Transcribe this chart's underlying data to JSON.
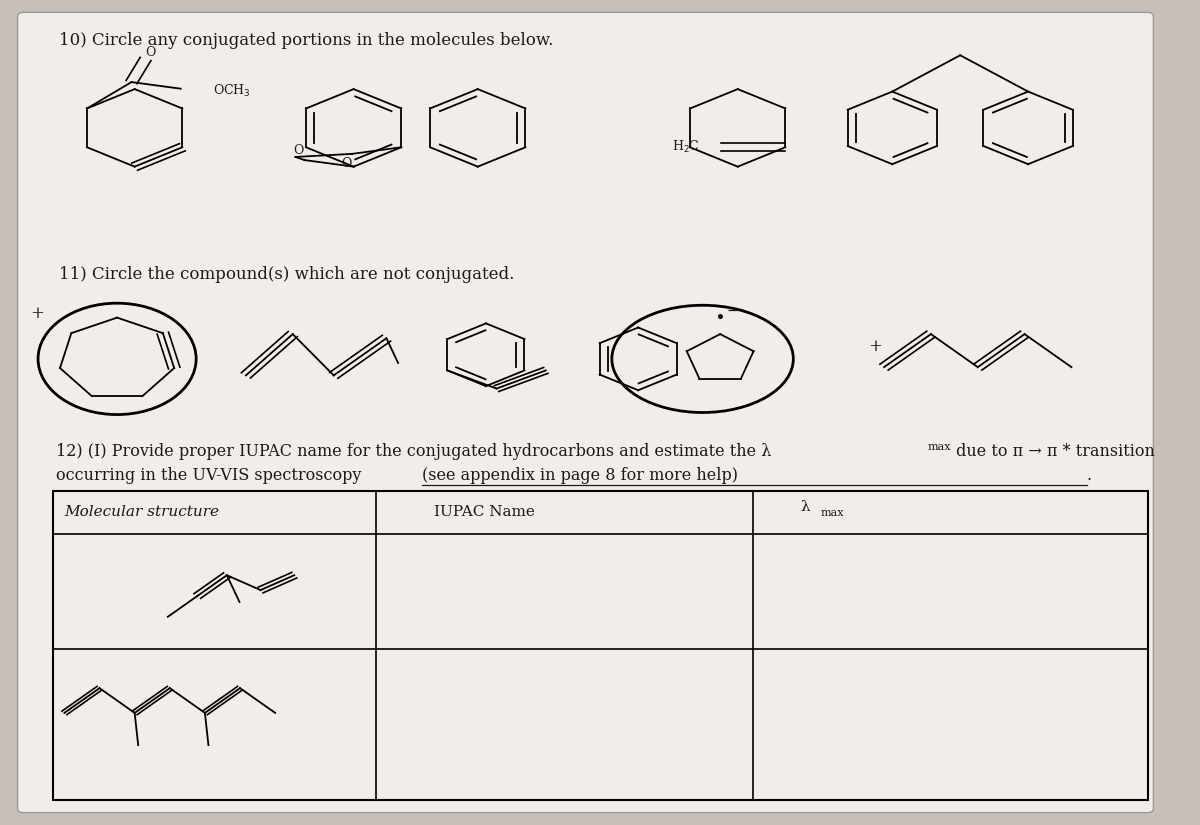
{
  "bg_color": "#c8c0b8",
  "paper_color": "#f2ede8",
  "text_color": "#1a1a1a",
  "title10": "10) Circle any conjugated portions in the molecules below.",
  "title11": "11) Circle the compound(s) which are not conjugated.",
  "col1_header": "Molecular structure",
  "col2_header": "IUPAC Name",
  "col3_header": "λ",
  "col3_header_sub": "max"
}
